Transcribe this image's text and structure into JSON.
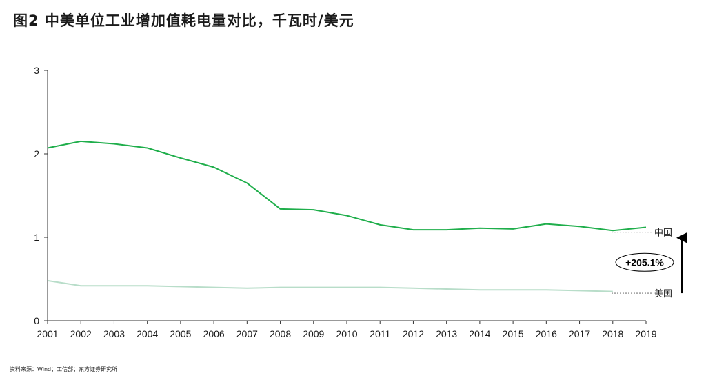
{
  "title": "图2 中美单位工业增加值耗电量对比，千瓦时/美元",
  "source": "资料来源：Wind；工信部；东方证券研究所",
  "colors": {
    "china": "#1fae4b",
    "usa": "#b8ddc9",
    "axis": "#333333"
  },
  "chart_data": {
    "type": "line",
    "title": "图2 中美单位工业增加值耗电量对比，千瓦时/美元",
    "xlabel": "",
    "ylabel": "",
    "x": [
      "2001",
      "2002",
      "2003",
      "2004",
      "2005",
      "2006",
      "2007",
      "2008",
      "2009",
      "2010",
      "2011",
      "2012",
      "2013",
      "2014",
      "2015",
      "2016",
      "2017",
      "2018",
      "2019"
    ],
    "ylim": [
      0,
      3
    ],
    "yticks": [
      "0",
      "1",
      "2",
      "3"
    ],
    "grid": false,
    "legend": "inline-right",
    "series": [
      {
        "name": "中国",
        "values": [
          2.07,
          2.15,
          2.12,
          2.07,
          1.95,
          1.84,
          1.65,
          1.34,
          1.33,
          1.26,
          1.15,
          1.09,
          1.09,
          1.11,
          1.1,
          1.16,
          1.13,
          1.08,
          1.12
        ]
      },
      {
        "name": "美国",
        "values": [
          0.48,
          0.42,
          0.42,
          0.42,
          0.41,
          0.4,
          0.39,
          0.4,
          0.4,
          0.4,
          0.4,
          0.39,
          0.38,
          0.37,
          0.37,
          0.37,
          0.36,
          0.35,
          null
        ]
      }
    ],
    "annotations": [
      {
        "text": "+205.1%"
      }
    ]
  }
}
